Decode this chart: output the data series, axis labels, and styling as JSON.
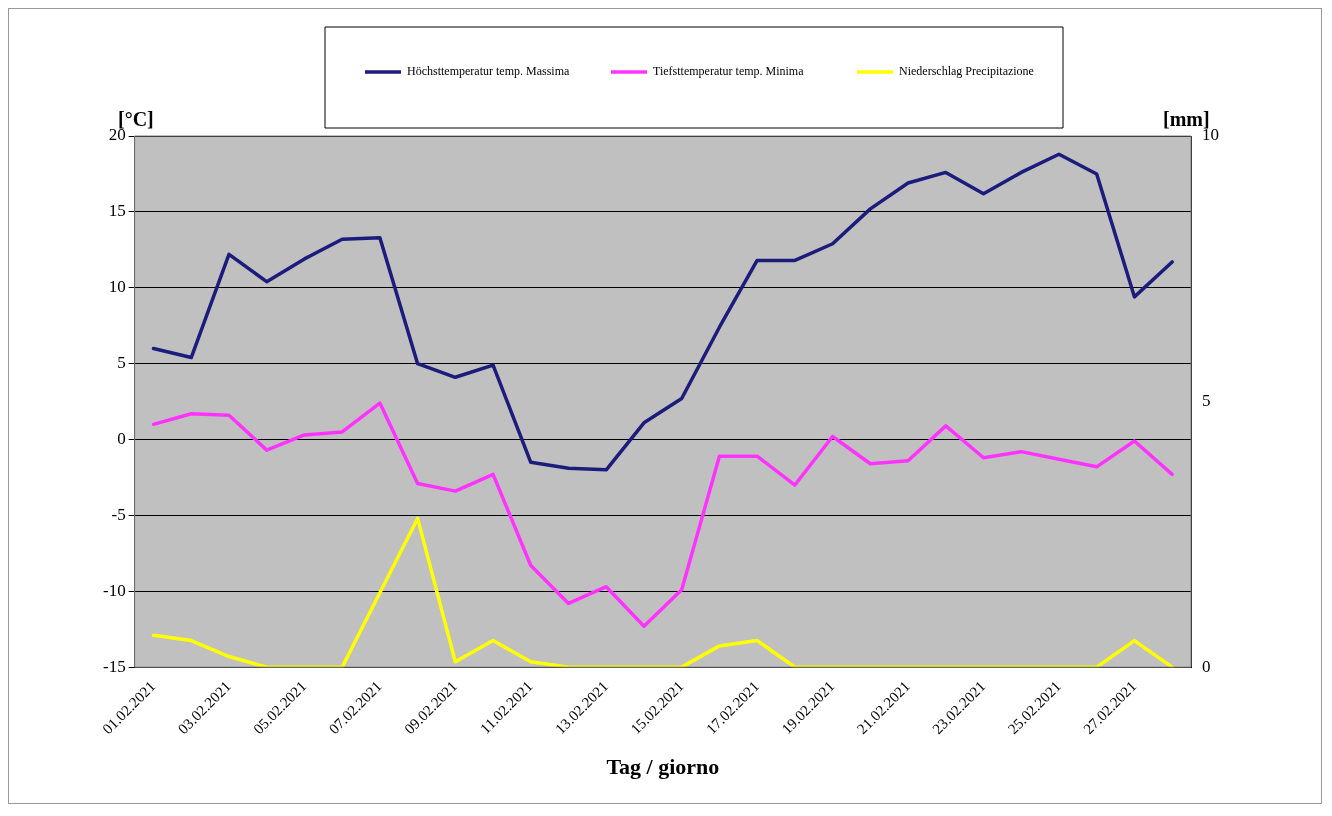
{
  "chart_data": {
    "type": "line",
    "xlabel": "Tag / giorno",
    "ylabel": "[°C]",
    "y2label": "[mm]",
    "categories": [
      "01.02.2021",
      null,
      "03.02.2021",
      null,
      "05.02.2021",
      null,
      "07.02.2021",
      null,
      "09.02.2021",
      null,
      "11.02.2021",
      null,
      "13.02.2021",
      null,
      "15.02.2021",
      null,
      "17.02.2021",
      null,
      "19.02.2021",
      null,
      "21.02.2021",
      null,
      "23.02.2021",
      null,
      "25.02.2021",
      null,
      "27.02.2021",
      null
    ],
    "series": [
      {
        "name": "Höchsttemperatur temp. Massima",
        "color": "#1c1c7c",
        "values": [
          6,
          5.4,
          12.2,
          10.4,
          11.9,
          13.2,
          13.3,
          5.0,
          4.1,
          4.9,
          -1.5,
          -1.9,
          -2.0,
          1.1,
          2.7,
          7.4,
          11.8,
          11.8,
          12.9,
          15.2,
          16.9,
          17.6,
          16.2,
          17.6,
          18.8,
          17.5,
          9.4,
          11.7
        ]
      },
      {
        "name": "Tiefsttemperatur temp. Minima",
        "color": "#ff33ff",
        "values": [
          1.0,
          1.7,
          1.6,
          -0.7,
          0.3,
          0.5,
          2.4,
          -2.9,
          -3.4,
          -2.3,
          -8.3,
          -10.8,
          -9.7,
          -12.3,
          -9.9,
          -1.1,
          -1.1,
          -3.0,
          0.2,
          -1.6,
          -1.4,
          0.9,
          -1.2,
          -0.8,
          -1.3,
          -1.8,
          -0.1,
          -2.3
        ]
      },
      {
        "name": "Niederschlag Precipitazione",
        "color": "#ffff00",
        "axis": "y2",
        "values": [
          0.6,
          0.5,
          0.2,
          0,
          0,
          0,
          1.4,
          2.8,
          0.1,
          0.5,
          0.1,
          0,
          0,
          0,
          0,
          0.4,
          0.5,
          0,
          0,
          0,
          0,
          0,
          0,
          0,
          0,
          0,
          0.5,
          0
        ]
      }
    ],
    "ylim": [
      -15,
      20
    ],
    "yticks": [
      -15,
      -10,
      -5,
      0,
      5,
      10,
      15,
      20
    ],
    "y2lim": [
      0,
      10
    ],
    "y2ticks": [
      0,
      5,
      10
    ],
    "grid": "y",
    "legend": "top",
    "marker": "none",
    "line_style": "solid"
  }
}
